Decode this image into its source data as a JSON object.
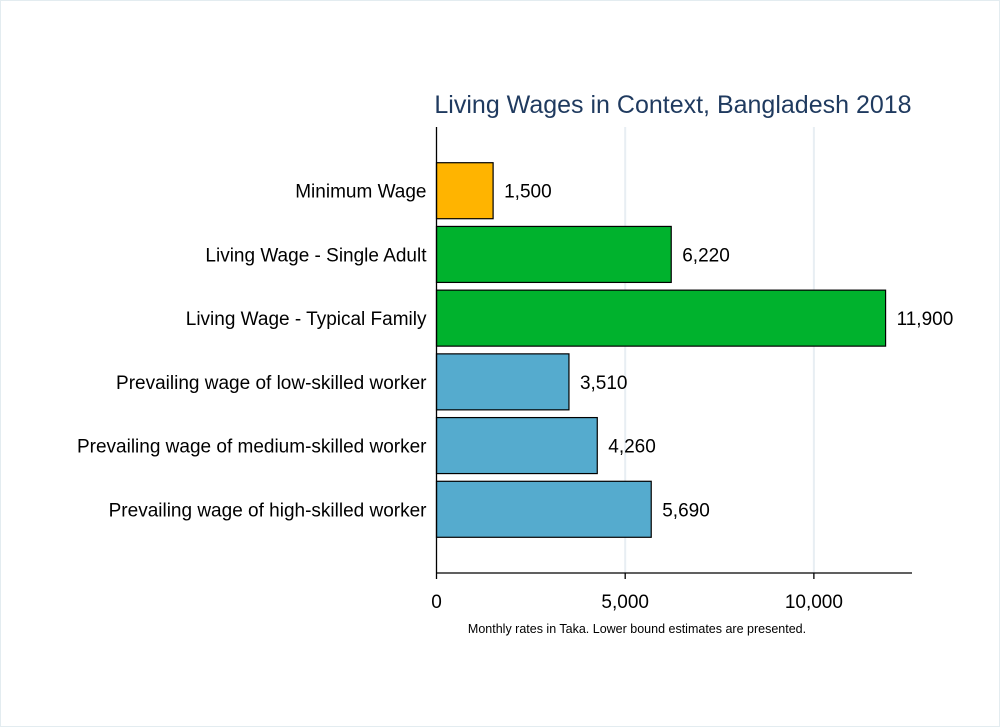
{
  "chart_data": {
    "type": "bar",
    "orientation": "horizontal",
    "title": "Living Wages in Context, Bangladesh 2018",
    "note": "Monthly rates in Taka. Lower bound estimates are presented.",
    "categories": [
      "Minimum Wage",
      "Living Wage - Single Adult",
      "Living Wage - Typical Family",
      "Prevailing wage of low-skilled worker",
      "Prevailing wage of medium-skilled worker",
      "Prevailing wage of high-skilled worker"
    ],
    "values": [
      1500,
      6220,
      11900,
      3510,
      4260,
      5690
    ],
    "value_labels": [
      "1,500",
      "6,220",
      "11,900",
      "3,510",
      "4,260",
      "5,690"
    ],
    "colors": [
      "#FFB400",
      "#00B22D",
      "#00B22D",
      "#55ABCE",
      "#55ABCE",
      "#55ABCE"
    ],
    "xlim": [
      0,
      12600
    ],
    "xticks": [
      0,
      5000,
      10000
    ],
    "xtick_labels": [
      "0",
      "5,000",
      "10,000"
    ],
    "grid": "vertical",
    "title_color": "#1F3A5F"
  }
}
